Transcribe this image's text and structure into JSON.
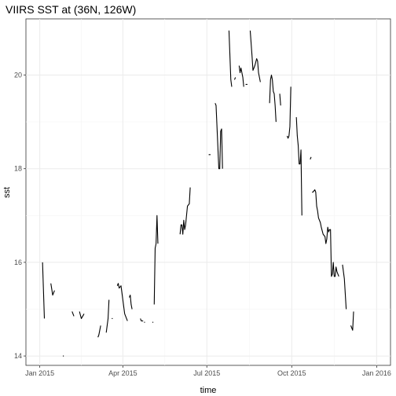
{
  "chart_data": {
    "type": "line",
    "title": "VIIRS SST at (36N, 126W)",
    "xlabel": "time",
    "ylabel": "sst",
    "x_type": "date",
    "xlim": [
      "2014-12-17",
      "2016-01-16"
    ],
    "ylim": [
      13.8,
      21.2
    ],
    "x_ticks": [
      {
        "date": "2015-01-01",
        "label": "Jan 2015"
      },
      {
        "date": "2015-04-01",
        "label": "Apr 2015"
      },
      {
        "date": "2015-07-01",
        "label": "Jul 2015"
      },
      {
        "date": "2015-10-01",
        "label": "Oct 2015"
      },
      {
        "date": "2016-01-01",
        "label": "Jan 2016"
      }
    ],
    "y_ticks": [
      14,
      16,
      18,
      20
    ],
    "grid": true,
    "line_color": "#000000",
    "segments": [
      [
        [
          "2015-01-04",
          16.0
        ],
        [
          "2015-01-06",
          14.8
        ]
      ],
      [
        [
          "2015-01-13",
          15.55
        ],
        [
          "2015-01-15",
          15.3
        ],
        [
          "2015-01-17",
          15.4
        ]
      ],
      [
        [
          "2015-01-26",
          14.0
        ],
        [
          "2015-01-27",
          14.0
        ]
      ],
      [
        [
          "2015-02-05",
          14.95
        ],
        [
          "2015-02-07",
          14.85
        ]
      ],
      [
        [
          "2015-02-13",
          14.95
        ],
        [
          "2015-02-15",
          14.8
        ],
        [
          "2015-02-18",
          14.9
        ]
      ],
      [
        [
          "2015-03-05",
          14.4
        ],
        [
          "2015-03-06",
          14.45
        ],
        [
          "2015-03-08",
          14.65
        ]
      ],
      [
        [
          "2015-03-14",
          14.5
        ],
        [
          "2015-03-16",
          14.8
        ],
        [
          "2015-03-17",
          15.2
        ]
      ],
      [
        [
          "2015-03-20",
          14.8
        ],
        [
          "2015-03-21",
          14.8
        ]
      ],
      [
        [
          "2015-03-26",
          15.5
        ],
        [
          "2015-03-27",
          15.55
        ],
        [
          "2015-03-28",
          15.45
        ],
        [
          "2015-03-30",
          15.5
        ],
        [
          "2015-04-01",
          15.2
        ],
        [
          "2015-04-03",
          14.9
        ],
        [
          "2015-04-05",
          14.8
        ],
        [
          "2015-04-06",
          14.75
        ]
      ],
      [
        [
          "2015-04-08",
          15.25
        ],
        [
          "2015-04-09",
          15.3
        ],
        [
          "2015-04-10",
          15.1
        ],
        [
          "2015-04-11",
          15.0
        ]
      ],
      [
        [
          "2015-04-20",
          14.8
        ],
        [
          "2015-04-21",
          14.75
        ],
        [
          "2015-04-23",
          14.75
        ]
      ],
      [
        [
          "2015-04-24",
          14.72
        ],
        [
          "2015-04-25",
          14.72
        ]
      ],
      [
        [
          "2015-05-03",
          14.72
        ],
        [
          "2015-05-04",
          14.72
        ]
      ],
      [
        [
          "2015-05-05",
          15.1
        ],
        [
          "2015-05-06",
          16.3
        ],
        [
          "2015-05-07",
          16.4
        ],
        [
          "2015-05-08",
          17.0
        ],
        [
          "2015-05-09",
          16.4
        ]
      ],
      [
        [
          "2015-06-02",
          16.6
        ],
        [
          "2015-06-03",
          16.8
        ],
        [
          "2015-06-04",
          16.8
        ],
        [
          "2015-06-05",
          16.6
        ],
        [
          "2015-06-06",
          16.9
        ],
        [
          "2015-06-07",
          16.7
        ],
        [
          "2015-06-08",
          16.8
        ],
        [
          "2015-06-10",
          17.2
        ],
        [
          "2015-06-12",
          17.25
        ],
        [
          "2015-06-13",
          17.6
        ]
      ],
      [
        [
          "2015-07-03",
          18.3
        ],
        [
          "2015-07-05",
          18.3
        ]
      ],
      [
        [
          "2015-07-10",
          19.4
        ],
        [
          "2015-07-11",
          19.35
        ],
        [
          "2015-07-14",
          18.0
        ],
        [
          "2015-07-15",
          18.0
        ],
        [
          "2015-07-16",
          18.8
        ],
        [
          "2015-07-17",
          18.85
        ],
        [
          "2015-07-18",
          18.0
        ]
      ],
      [
        [
          "2015-07-25",
          20.95
        ],
        [
          "2015-07-27",
          19.9
        ],
        [
          "2015-07-28",
          19.75
        ]
      ],
      [
        [
          "2015-07-31",
          19.9
        ],
        [
          "2015-08-01",
          19.95
        ]
      ],
      [
        [
          "2015-08-05",
          20.2
        ],
        [
          "2015-08-06",
          20.05
        ],
        [
          "2015-08-07",
          20.15
        ],
        [
          "2015-08-09",
          19.95
        ],
        [
          "2015-08-10",
          19.75
        ]
      ],
      [
        [
          "2015-08-12",
          19.8
        ],
        [
          "2015-08-14",
          19.8
        ]
      ],
      [
        [
          "2015-08-17",
          20.95
        ],
        [
          "2015-08-19",
          20.4
        ],
        [
          "2015-08-20",
          20.1
        ],
        [
          "2015-08-22",
          20.2
        ],
        [
          "2015-08-24",
          20.35
        ],
        [
          "2015-08-25",
          20.3
        ],
        [
          "2015-08-26",
          20.05
        ],
        [
          "2015-08-28",
          19.85
        ]
      ],
      [
        [
          "2015-09-07",
          19.4
        ],
        [
          "2015-09-08",
          19.9
        ],
        [
          "2015-09-09",
          20.0
        ],
        [
          "2015-09-10",
          19.9
        ],
        [
          "2015-09-11",
          19.65
        ],
        [
          "2015-09-12",
          19.6
        ],
        [
          "2015-09-13",
          19.35
        ],
        [
          "2015-09-14",
          19.0
        ]
      ],
      [
        [
          "2015-09-18",
          19.6
        ],
        [
          "2015-09-19",
          19.35
        ]
      ],
      [
        [
          "2015-09-26",
          18.7
        ],
        [
          "2015-09-27",
          18.65
        ],
        [
          "2015-09-28",
          18.7
        ],
        [
          "2015-09-29",
          18.9
        ],
        [
          "2015-09-30",
          19.75
        ]
      ],
      [
        [
          "2015-10-06",
          19.1
        ],
        [
          "2015-10-07",
          18.7
        ],
        [
          "2015-10-08",
          18.5
        ],
        [
          "2015-10-09",
          18.1
        ],
        [
          "2015-10-10",
          18.1
        ],
        [
          "2015-10-11",
          18.4
        ],
        [
          "2015-10-12",
          17.0
        ]
      ],
      [
        [
          "2015-10-21",
          18.2
        ],
        [
          "2015-10-22",
          18.25
        ]
      ],
      [
        [
          "2015-10-23",
          17.5
        ],
        [
          "2015-10-24",
          17.5
        ],
        [
          "2015-10-26",
          17.55
        ],
        [
          "2015-10-27",
          17.5
        ],
        [
          "2015-10-28",
          17.2
        ],
        [
          "2015-10-29",
          17.1
        ],
        [
          "2015-10-30",
          16.95
        ],
        [
          "2015-11-01",
          16.85
        ],
        [
          "2015-11-02",
          16.75
        ],
        [
          "2015-11-04",
          16.6
        ],
        [
          "2015-11-06",
          16.55
        ],
        [
          "2015-11-07",
          16.4
        ],
        [
          "2015-11-08",
          16.5
        ],
        [
          "2015-11-09",
          16.75
        ],
        [
          "2015-11-10",
          16.65
        ],
        [
          "2015-11-11",
          16.7
        ],
        [
          "2015-11-12",
          16.7
        ],
        [
          "2015-11-13",
          15.7
        ],
        [
          "2015-11-14",
          15.75
        ],
        [
          "2015-11-15",
          16.0
        ],
        [
          "2015-11-16",
          15.7
        ],
        [
          "2015-11-17",
          15.7
        ],
        [
          "2015-11-18",
          15.9
        ],
        [
          "2015-11-19",
          15.8
        ],
        [
          "2015-11-20",
          15.75
        ],
        [
          "2015-11-21",
          15.7
        ]
      ],
      [
        [
          "2015-11-25",
          15.95
        ],
        [
          "2015-11-27",
          15.65
        ],
        [
          "2015-11-29",
          15.0
        ]
      ],
      [
        [
          "2015-12-04",
          14.65
        ],
        [
          "2015-12-05",
          14.6
        ],
        [
          "2015-12-06",
          14.55
        ],
        [
          "2015-12-07",
          14.95
        ]
      ]
    ]
  }
}
